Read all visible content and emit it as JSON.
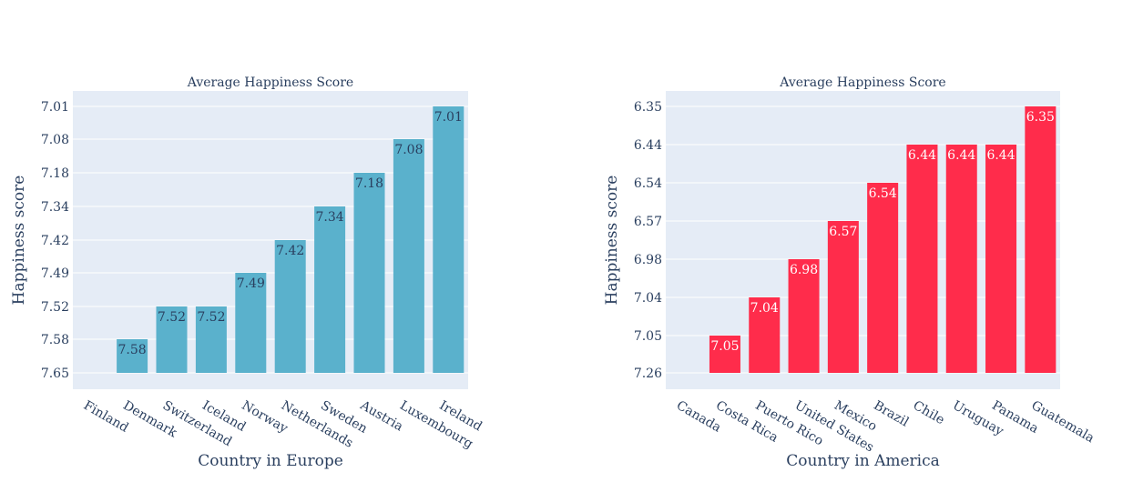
{
  "chart_data": [
    {
      "type": "bar",
      "title": "Average Happiness Score",
      "xlabel": "Country in Europe",
      "ylabel": "Happiness score",
      "categories": [
        "Finland",
        "Denmark",
        "Switzerland",
        "Iceland",
        "Norway",
        "Netherlands",
        "Sweden",
        "Austria",
        "Luxembourg",
        "Ireland"
      ],
      "y_tick_labels": [
        "7.65",
        "7.58",
        "7.52",
        "7.49",
        "7.42",
        "7.34",
        "7.18",
        "7.08",
        "7.01"
      ],
      "values": [
        7.65,
        7.58,
        7.52,
        7.52,
        7.49,
        7.42,
        7.34,
        7.18,
        7.08,
        7.01
      ],
      "data_labels": [
        "",
        "7.58",
        "7.52",
        "7.52",
        "7.49",
        "7.42",
        "7.34",
        "7.18",
        "7.08",
        "7.01"
      ],
      "y_axis": "categorical (labels in ascending order of rank)",
      "grid": true,
      "colors": {
        "bar": "#5ab1cc",
        "label": "#2a3f5f",
        "plot_bg": "#e5ecf6"
      }
    },
    {
      "type": "bar",
      "title": "Average Happiness Score",
      "xlabel": "Country in America",
      "ylabel": "Happiness score",
      "categories": [
        "Canada",
        "Costa Rica",
        "Puerto Rico",
        "United States",
        "Mexico",
        "Brazil",
        "Chile",
        "Uruguay",
        "Panama",
        "Guatemala"
      ],
      "y_tick_labels": [
        "7.26",
        "7.05",
        "7.04",
        "6.98",
        "6.57",
        "6.54",
        "6.44",
        "6.35"
      ],
      "values": [
        7.26,
        7.05,
        7.04,
        6.98,
        6.57,
        6.54,
        6.44,
        6.44,
        6.44,
        6.35
      ],
      "data_labels": [
        "",
        "7.05",
        "7.04",
        "6.98",
        "6.57",
        "6.54",
        "6.44",
        "6.44",
        "6.44",
        "6.35"
      ],
      "y_axis": "categorical (labels in ascending order of rank)",
      "grid": true,
      "colors": {
        "bar": "#ff2c4b",
        "label": "#ffffff",
        "plot_bg": "#e5ecf6"
      }
    }
  ]
}
